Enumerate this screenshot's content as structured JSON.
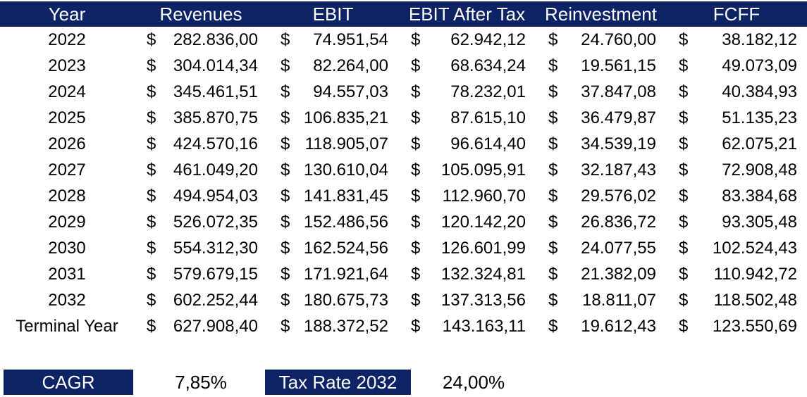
{
  "chart_data": {
    "type": "table",
    "currency_symbol": "$",
    "columns": [
      "Year",
      "Revenues",
      "EBIT",
      "EBIT After Tax",
      "Reinvestment",
      "FCFF"
    ],
    "rows": [
      {
        "label": "2022",
        "values": [
          "282.836,00",
          "74.951,54",
          "62.942,12",
          "24.760,00",
          "38.182,12"
        ]
      },
      {
        "label": "2023",
        "values": [
          "304.014,34",
          "82.264,00",
          "68.634,24",
          "19.561,15",
          "49.073,09"
        ]
      },
      {
        "label": "2024",
        "values": [
          "345.461,51",
          "94.557,03",
          "78.232,01",
          "37.847,08",
          "40.384,93"
        ]
      },
      {
        "label": "2025",
        "values": [
          "385.870,75",
          "106.835,21",
          "87.615,10",
          "36.479,87",
          "51.135,23"
        ]
      },
      {
        "label": "2026",
        "values": [
          "424.570,16",
          "118.905,07",
          "96.614,40",
          "34.539,19",
          "62.075,21"
        ]
      },
      {
        "label": "2027",
        "values": [
          "461.049,20",
          "130.610,04",
          "105.095,91",
          "32.187,43",
          "72.908,48"
        ]
      },
      {
        "label": "2028",
        "values": [
          "494.954,03",
          "141.831,45",
          "112.960,70",
          "29.576,02",
          "83.384,68"
        ]
      },
      {
        "label": "2029",
        "values": [
          "526.072,35",
          "152.486,56",
          "120.142,20",
          "26.836,72",
          "93.305,48"
        ]
      },
      {
        "label": "2030",
        "values": [
          "554.312,30",
          "162.524,56",
          "126.601,99",
          "24.077,55",
          "102.524,43"
        ]
      },
      {
        "label": "2031",
        "values": [
          "579.679,15",
          "171.921,64",
          "132.324,81",
          "21.382,09",
          "110.942,72"
        ]
      },
      {
        "label": "2032",
        "values": [
          "602.252,44",
          "180.675,73",
          "137.313,56",
          "18.811,07",
          "118.502,48"
        ]
      },
      {
        "label": "Terminal Year",
        "values": [
          "627.908,40",
          "188.372,52",
          "143.163,11",
          "19.612,43",
          "123.550,69"
        ]
      }
    ]
  },
  "summary": {
    "cagr_label": "CAGR",
    "cagr_value": "7,85%",
    "tax_rate_label": "Tax Rate 2032",
    "tax_rate_value": "24,00%"
  },
  "colors": {
    "header_bg": "#0D2365",
    "header_text": "#FFFFFF",
    "body_text": "#000000",
    "background": "#FFFFFF"
  }
}
